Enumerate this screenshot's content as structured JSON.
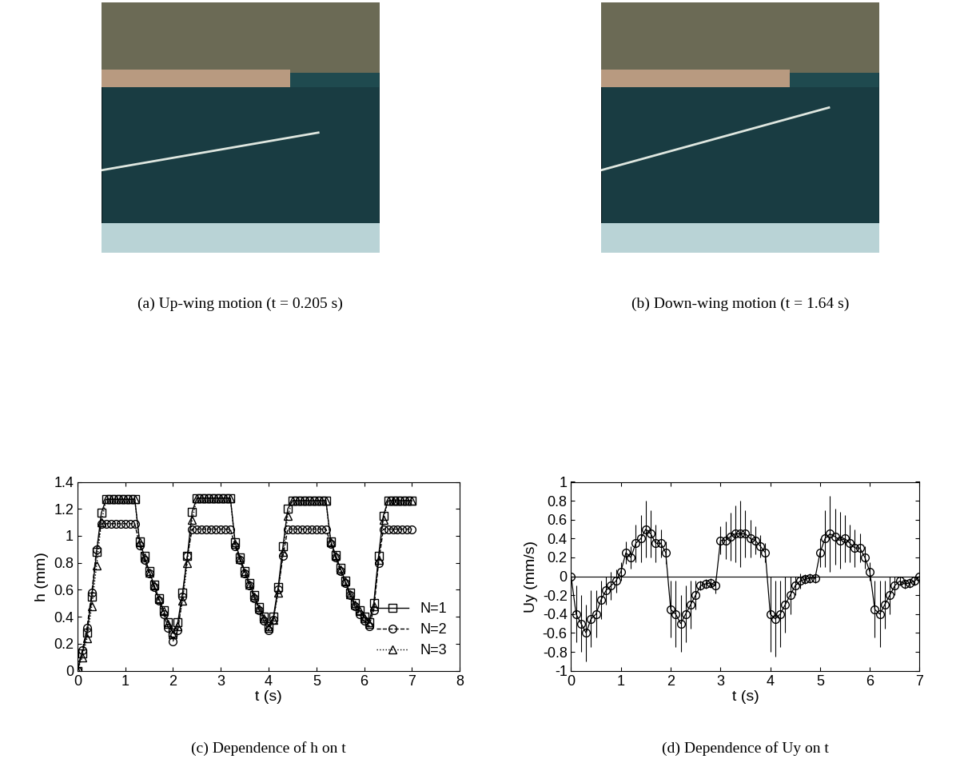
{
  "chart_data": [
    {
      "type": "image",
      "caption": "(a) Up-wing motion (t = 0.205 s)"
    },
    {
      "type": "image",
      "caption": "(b) Down-wing motion (t = 1.64 s)"
    },
    {
      "type": "line",
      "caption": "(c) Dependence of h on t",
      "x_label": "t (s)",
      "y_label": "h (mm)",
      "xlim": [
        0,
        8
      ],
      "xticks": [
        0,
        1,
        2,
        3,
        4,
        5,
        6,
        7,
        8
      ],
      "ylim": [
        0,
        1.4
      ],
      "yticks": [
        0,
        0.2,
        0.4,
        0.6,
        0.8,
        1,
        1.2,
        1.4
      ],
      "legend": "lower right",
      "x": [
        0,
        0.1,
        0.2,
        0.3,
        0.4,
        0.5,
        0.6,
        0.7,
        0.8,
        0.9,
        1.0,
        1.1,
        1.2,
        1.3,
        1.4,
        1.5,
        1.6,
        1.7,
        1.8,
        1.9,
        2.0,
        2.1,
        2.2,
        2.3,
        2.4,
        2.5,
        2.6,
        2.7,
        2.8,
        2.9,
        3.0,
        3.1,
        3.2,
        3.3,
        3.4,
        3.5,
        3.6,
        3.7,
        3.8,
        3.9,
        4.0,
        4.1,
        4.2,
        4.3,
        4.4,
        4.5,
        4.6,
        4.7,
        4.8,
        4.9,
        5.0,
        5.1,
        5.2,
        5.3,
        5.4,
        5.5,
        5.6,
        5.7,
        5.8,
        5.9,
        6.0,
        6.1,
        6.2,
        6.3,
        6.4,
        6.5,
        6.6,
        6.7,
        6.8,
        6.9,
        7.0
      ],
      "series": [
        {
          "name": "N=1",
          "color": "#000000",
          "marker": "square",
          "line_style": "solid",
          "values": [
            0,
            0.13,
            0.28,
            0.55,
            0.88,
            1.17,
            1.27,
            1.27,
            1.27,
            1.27,
            1.27,
            1.27,
            1.27,
            0.96,
            0.85,
            0.74,
            0.64,
            0.54,
            0.45,
            0.36,
            0.28,
            0.36,
            0.58,
            0.85,
            1.18,
            1.28,
            1.28,
            1.28,
            1.28,
            1.28,
            1.28,
            1.28,
            1.28,
            0.95,
            0.84,
            0.74,
            0.65,
            0.56,
            0.47,
            0.4,
            0.33,
            0.4,
            0.62,
            0.92,
            1.2,
            1.26,
            1.26,
            1.26,
            1.26,
            1.26,
            1.26,
            1.26,
            1.26,
            0.96,
            0.86,
            0.76,
            0.67,
            0.58,
            0.5,
            0.45,
            0.4,
            0.36,
            0.5,
            0.85,
            1.15,
            1.26,
            1.26,
            1.26,
            1.26,
            1.26,
            1.26
          ]
        },
        {
          "name": "N=2",
          "color": "#000000",
          "marker": "circle",
          "line_style": "dashed",
          "values": [
            0,
            0.15,
            0.32,
            0.58,
            0.9,
            1.09,
            1.09,
            1.09,
            1.09,
            1.09,
            1.09,
            1.09,
            1.09,
            0.93,
            0.82,
            0.72,
            0.62,
            0.52,
            0.42,
            0.32,
            0.22,
            0.3,
            0.55,
            0.85,
            1.05,
            1.05,
            1.05,
            1.05,
            1.05,
            1.05,
            1.05,
            1.05,
            1.05,
            0.92,
            0.82,
            0.72,
            0.63,
            0.54,
            0.45,
            0.37,
            0.3,
            0.38,
            0.6,
            0.85,
            1.05,
            1.05,
            1.05,
            1.05,
            1.05,
            1.05,
            1.05,
            1.05,
            1.05,
            0.94,
            0.84,
            0.74,
            0.65,
            0.56,
            0.48,
            0.42,
            0.37,
            0.33,
            0.45,
            0.8,
            1.05,
            1.05,
            1.05,
            1.05,
            1.05,
            1.05,
            1.05
          ]
        },
        {
          "name": "N=3",
          "color": "#000000",
          "marker": "triangle",
          "line_style": "dotted",
          "values": [
            0,
            0.1,
            0.24,
            0.48,
            0.78,
            1.1,
            1.27,
            1.27,
            1.27,
            1.27,
            1.27,
            1.27,
            1.27,
            0.95,
            0.84,
            0.73,
            0.63,
            0.53,
            0.44,
            0.35,
            0.27,
            0.33,
            0.52,
            0.8,
            1.12,
            1.28,
            1.28,
            1.28,
            1.28,
            1.28,
            1.28,
            1.28,
            1.28,
            0.94,
            0.83,
            0.73,
            0.64,
            0.55,
            0.46,
            0.39,
            0.32,
            0.38,
            0.58,
            0.88,
            1.15,
            1.26,
            1.26,
            1.26,
            1.26,
            1.26,
            1.26,
            1.26,
            1.26,
            0.95,
            0.85,
            0.75,
            0.66,
            0.57,
            0.49,
            0.44,
            0.39,
            0.35,
            0.48,
            0.82,
            1.12,
            1.26,
            1.26,
            1.26,
            1.26,
            1.26,
            1.26
          ]
        }
      ]
    },
    {
      "type": "errorbar",
      "caption": "(d) Dependence of Uy on t",
      "x_label": "t (s)",
      "y_label": "Uy (mm/s)",
      "xlim": [
        0,
        7
      ],
      "xticks": [
        0,
        1,
        2,
        3,
        4,
        5,
        6,
        7
      ],
      "ylim": [
        -1,
        1
      ],
      "yticks": [
        -1,
        -0.8,
        -0.6,
        -0.4,
        -0.2,
        0,
        0.2,
        0.4,
        0.6,
        0.8,
        1
      ],
      "hline": 0,
      "x": [
        0,
        0.1,
        0.2,
        0.3,
        0.4,
        0.5,
        0.6,
        0.7,
        0.8,
        0.9,
        1.0,
        1.1,
        1.2,
        1.3,
        1.4,
        1.5,
        1.6,
        1.7,
        1.8,
        1.9,
        2.0,
        2.1,
        2.2,
        2.3,
        2.4,
        2.5,
        2.6,
        2.7,
        2.8,
        2.9,
        3.0,
        3.1,
        3.2,
        3.3,
        3.4,
        3.5,
        3.6,
        3.7,
        3.8,
        3.9,
        4.0,
        4.1,
        4.2,
        4.3,
        4.4,
        4.5,
        4.6,
        4.7,
        4.8,
        4.9,
        5.0,
        5.1,
        5.2,
        5.3,
        5.4,
        5.5,
        5.6,
        5.7,
        5.8,
        5.9,
        6.0,
        6.1,
        6.2,
        6.3,
        6.4,
        6.5,
        6.6,
        6.7,
        6.8,
        6.9,
        7.0
      ],
      "series": [
        {
          "color": "#000000",
          "marker": "circle",
          "line_style": "solid",
          "values": [
            0,
            -0.4,
            -0.5,
            -0.6,
            -0.45,
            -0.4,
            -0.25,
            -0.15,
            -0.1,
            -0.05,
            0.05,
            0.25,
            0.2,
            0.35,
            0.4,
            0.5,
            0.45,
            0.35,
            0.35,
            0.25,
            -0.35,
            -0.4,
            -0.5,
            -0.4,
            -0.3,
            -0.2,
            -0.1,
            -0.08,
            -0.07,
            -0.1,
            0.38,
            0.38,
            0.42,
            0.45,
            0.45,
            0.45,
            0.4,
            0.38,
            0.32,
            0.25,
            -0.4,
            -0.45,
            -0.4,
            -0.3,
            -0.2,
            -0.1,
            -0.05,
            -0.03,
            -0.02,
            -0.02,
            0.25,
            0.4,
            0.45,
            0.42,
            0.38,
            0.4,
            0.35,
            0.3,
            0.3,
            0.2,
            0.05,
            -0.35,
            -0.4,
            -0.3,
            -0.2,
            -0.1,
            -0.05,
            -0.08,
            -0.07,
            -0.05,
            0
          ],
          "errors": [
            0,
            0.3,
            0.3,
            0.3,
            0.3,
            0.25,
            0.2,
            0.15,
            0.15,
            0.12,
            0.1,
            0.12,
            0.12,
            0.2,
            0.25,
            0.3,
            0.25,
            0.2,
            0.15,
            0.12,
            0.3,
            0.35,
            0.3,
            0.3,
            0.25,
            0.15,
            0.05,
            0.05,
            0.05,
            0.08,
            0.15,
            0.2,
            0.25,
            0.3,
            0.35,
            0.25,
            0.2,
            0.15,
            0.12,
            0.1,
            0.4,
            0.4,
            0.35,
            0.3,
            0.2,
            0.1,
            0.08,
            0.05,
            0.05,
            0.05,
            0.15,
            0.3,
            0.4,
            0.3,
            0.3,
            0.25,
            0.2,
            0.2,
            0.15,
            0.12,
            0.1,
            0.3,
            0.35,
            0.25,
            0.2,
            0.1,
            0.05,
            0.05,
            0.05,
            0.05,
            0
          ]
        }
      ]
    }
  ]
}
